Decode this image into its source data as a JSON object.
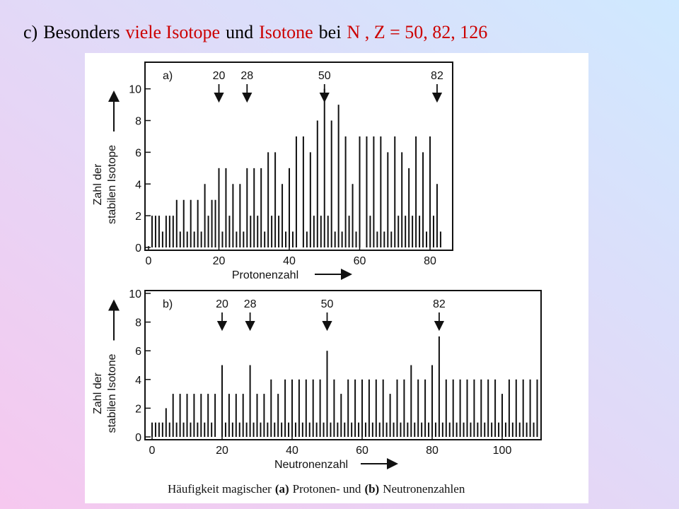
{
  "slide_title": [
    {
      "text": "c)",
      "color": "#000000"
    },
    {
      "text": "Besonders",
      "color": "#000000"
    },
    {
      "text": "viele Isotope",
      "color": "#cc0000"
    },
    {
      "text": "und",
      "color": "#000000"
    },
    {
      "text": "Isotone",
      "color": "#cc0000"
    },
    {
      "text": "bei",
      "color": "#000000"
    },
    {
      "text": "N , Z = 50, 82, 126",
      "color": "#cc0000"
    }
  ],
  "caption": [
    {
      "text": "Häufigkeit magischer",
      "bold": false
    },
    {
      "text": "(a)",
      "bold": true
    },
    {
      "text": "Protonen- und",
      "bold": false
    },
    {
      "text": "(b)",
      "bold": true
    },
    {
      "text": "Neutronenzahlen",
      "bold": false
    }
  ],
  "chart_data": [
    {
      "type": "bar",
      "panel_label": "a)",
      "x_label": "Protonenzahl",
      "y_label": [
        "Zahl der",
        "stabilen Isotope"
      ],
      "color": "#111111",
      "x": [
        1,
        2,
        3,
        4,
        5,
        6,
        7,
        8,
        9,
        10,
        11,
        12,
        13,
        14,
        15,
        16,
        17,
        18,
        19,
        20,
        21,
        22,
        23,
        24,
        25,
        26,
        27,
        28,
        29,
        30,
        31,
        32,
        33,
        34,
        35,
        36,
        37,
        38,
        39,
        40,
        41,
        42,
        43,
        44,
        45,
        46,
        47,
        48,
        49,
        50,
        51,
        52,
        53,
        54,
        55,
        56,
        57,
        58,
        59,
        60,
        61,
        62,
        63,
        64,
        65,
        66,
        67,
        68,
        69,
        70,
        71,
        72,
        73,
        74,
        75,
        76,
        77,
        78,
        79,
        80,
        81,
        82,
        83
      ],
      "values": [
        2,
        2,
        2,
        1,
        2,
        2,
        2,
        3,
        1,
        3,
        1,
        3,
        1,
        3,
        1,
        4,
        2,
        3,
        3,
        5,
        1,
        5,
        2,
        4,
        1,
        4,
        1,
        5,
        2,
        5,
        2,
        5,
        1,
        6,
        2,
        6,
        2,
        4,
        1,
        5,
        1,
        7,
        0,
        7,
        1,
        6,
        2,
        8,
        2,
        10,
        2,
        8,
        1,
        9,
        1,
        7,
        2,
        4,
        1,
        7,
        0,
        7,
        2,
        7,
        1,
        7,
        1,
        6,
        1,
        7,
        2,
        6,
        2,
        5,
        2,
        7,
        2,
        6,
        1,
        7,
        2,
        4,
        1
      ],
      "xlim": [
        0,
        86
      ],
      "xticks": [
        0,
        20,
        40,
        60,
        80
      ],
      "ylim": [
        0,
        11.5
      ],
      "yticks": [
        0,
        2,
        4,
        6,
        8,
        10
      ],
      "annotations": [
        {
          "x": 20,
          "text": "20"
        },
        {
          "x": 28,
          "text": "28"
        },
        {
          "x": 50,
          "text": "50"
        },
        {
          "x": 82,
          "text": "82"
        }
      ]
    },
    {
      "type": "bar",
      "panel_label": "b)",
      "x_label": "Neutronenzahl",
      "y_label": [
        "Zahl der",
        "stabilen Isotone"
      ],
      "color": "#111111",
      "x": [
        0,
        1,
        2,
        3,
        4,
        5,
        6,
        7,
        8,
        9,
        10,
        11,
        12,
        13,
        14,
        15,
        16,
        17,
        18,
        19,
        20,
        21,
        22,
        23,
        24,
        25,
        26,
        27,
        28,
        29,
        30,
        31,
        32,
        33,
        34,
        35,
        36,
        37,
        38,
        39,
        40,
        41,
        42,
        43,
        44,
        45,
        46,
        47,
        48,
        49,
        50,
        51,
        52,
        53,
        54,
        55,
        56,
        57,
        58,
        59,
        60,
        61,
        62,
        63,
        64,
        65,
        66,
        67,
        68,
        69,
        70,
        71,
        72,
        73,
        74,
        75,
        76,
        77,
        78,
        79,
        80,
        81,
        82,
        83,
        84,
        85,
        86,
        87,
        88,
        89,
        90,
        91,
        92,
        93,
        94,
        95,
        96,
        97,
        98,
        99,
        100,
        101,
        102,
        103,
        104,
        105,
        106,
        107,
        108,
        109,
        110
      ],
      "values": [
        1,
        1,
        1,
        1,
        2,
        1,
        3,
        1,
        3,
        1,
        3,
        1,
        3,
        1,
        3,
        1,
        3,
        1,
        3,
        0,
        5,
        1,
        3,
        1,
        3,
        1,
        3,
        1,
        5,
        1,
        3,
        1,
        3,
        1,
        4,
        1,
        3,
        1,
        4,
        1,
        4,
        1,
        4,
        1,
        4,
        1,
        4,
        1,
        4,
        1,
        6,
        1,
        4,
        1,
        3,
        1,
        4,
        1,
        4,
        1,
        4,
        1,
        4,
        1,
        4,
        1,
        4,
        1,
        3,
        1,
        4,
        1,
        4,
        1,
        5,
        1,
        4,
        1,
        4,
        1,
        5,
        1,
        7,
        1,
        4,
        1,
        4,
        1,
        4,
        1,
        4,
        1,
        4,
        1,
        4,
        1,
        4,
        1,
        4,
        1,
        3,
        1,
        4,
        1,
        4,
        1,
        4,
        1,
        4,
        1,
        4
      ],
      "xlim": [
        0,
        113
      ],
      "xticks": [
        0,
        20,
        40,
        60,
        80,
        100
      ],
      "ylim": [
        0,
        10
      ],
      "yticks": [
        0,
        2,
        4,
        6,
        8,
        10
      ],
      "annotations": [
        {
          "x": 20,
          "text": "20"
        },
        {
          "x": 28,
          "text": "28"
        },
        {
          "x": 50,
          "text": "50"
        },
        {
          "x": 82,
          "text": "82"
        }
      ]
    }
  ]
}
